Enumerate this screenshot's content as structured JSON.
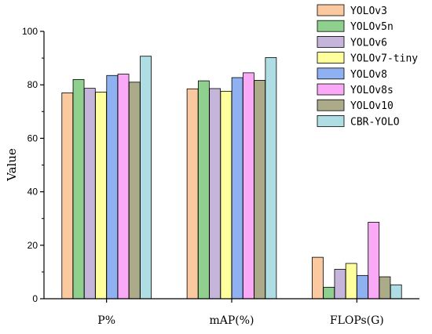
{
  "chart_data": {
    "type": "bar",
    "title": "",
    "xlabel": "",
    "ylabel": "Value",
    "ylim": [
      0,
      100
    ],
    "yticks": [
      0,
      20,
      40,
      60,
      80,
      100
    ],
    "categories": [
      "P%",
      "mAP(%)",
      "FLOPs(G)"
    ],
    "legend_position": "top-right",
    "grid": false,
    "series": [
      {
        "name": "YOLOv3",
        "color": "#FBC9A0",
        "values": [
          77.0,
          78.5,
          15.5
        ]
      },
      {
        "name": "YOLOv5n",
        "color": "#8FD08F",
        "values": [
          82.0,
          81.5,
          4.3
        ]
      },
      {
        "name": "YOLOv6",
        "color": "#C5B5DB",
        "values": [
          78.7,
          78.6,
          11.0
        ]
      },
      {
        "name": "YOLOv7-tiny",
        "color": "#FFFF9E",
        "values": [
          77.3,
          77.6,
          13.2
        ]
      },
      {
        "name": "YOLOv8",
        "color": "#8FB1F2",
        "values": [
          83.5,
          82.7,
          8.7
        ]
      },
      {
        "name": "YOLOv8s",
        "color": "#F9A9F5",
        "values": [
          84.0,
          84.5,
          28.6
        ]
      },
      {
        "name": "YOLOv10",
        "color": "#ABAA89",
        "values": [
          81.0,
          81.7,
          8.2
        ]
      },
      {
        "name": "CBR-YOLO",
        "color": "#AEDDE3",
        "values": [
          90.7,
          90.2,
          5.2
        ]
      }
    ]
  }
}
